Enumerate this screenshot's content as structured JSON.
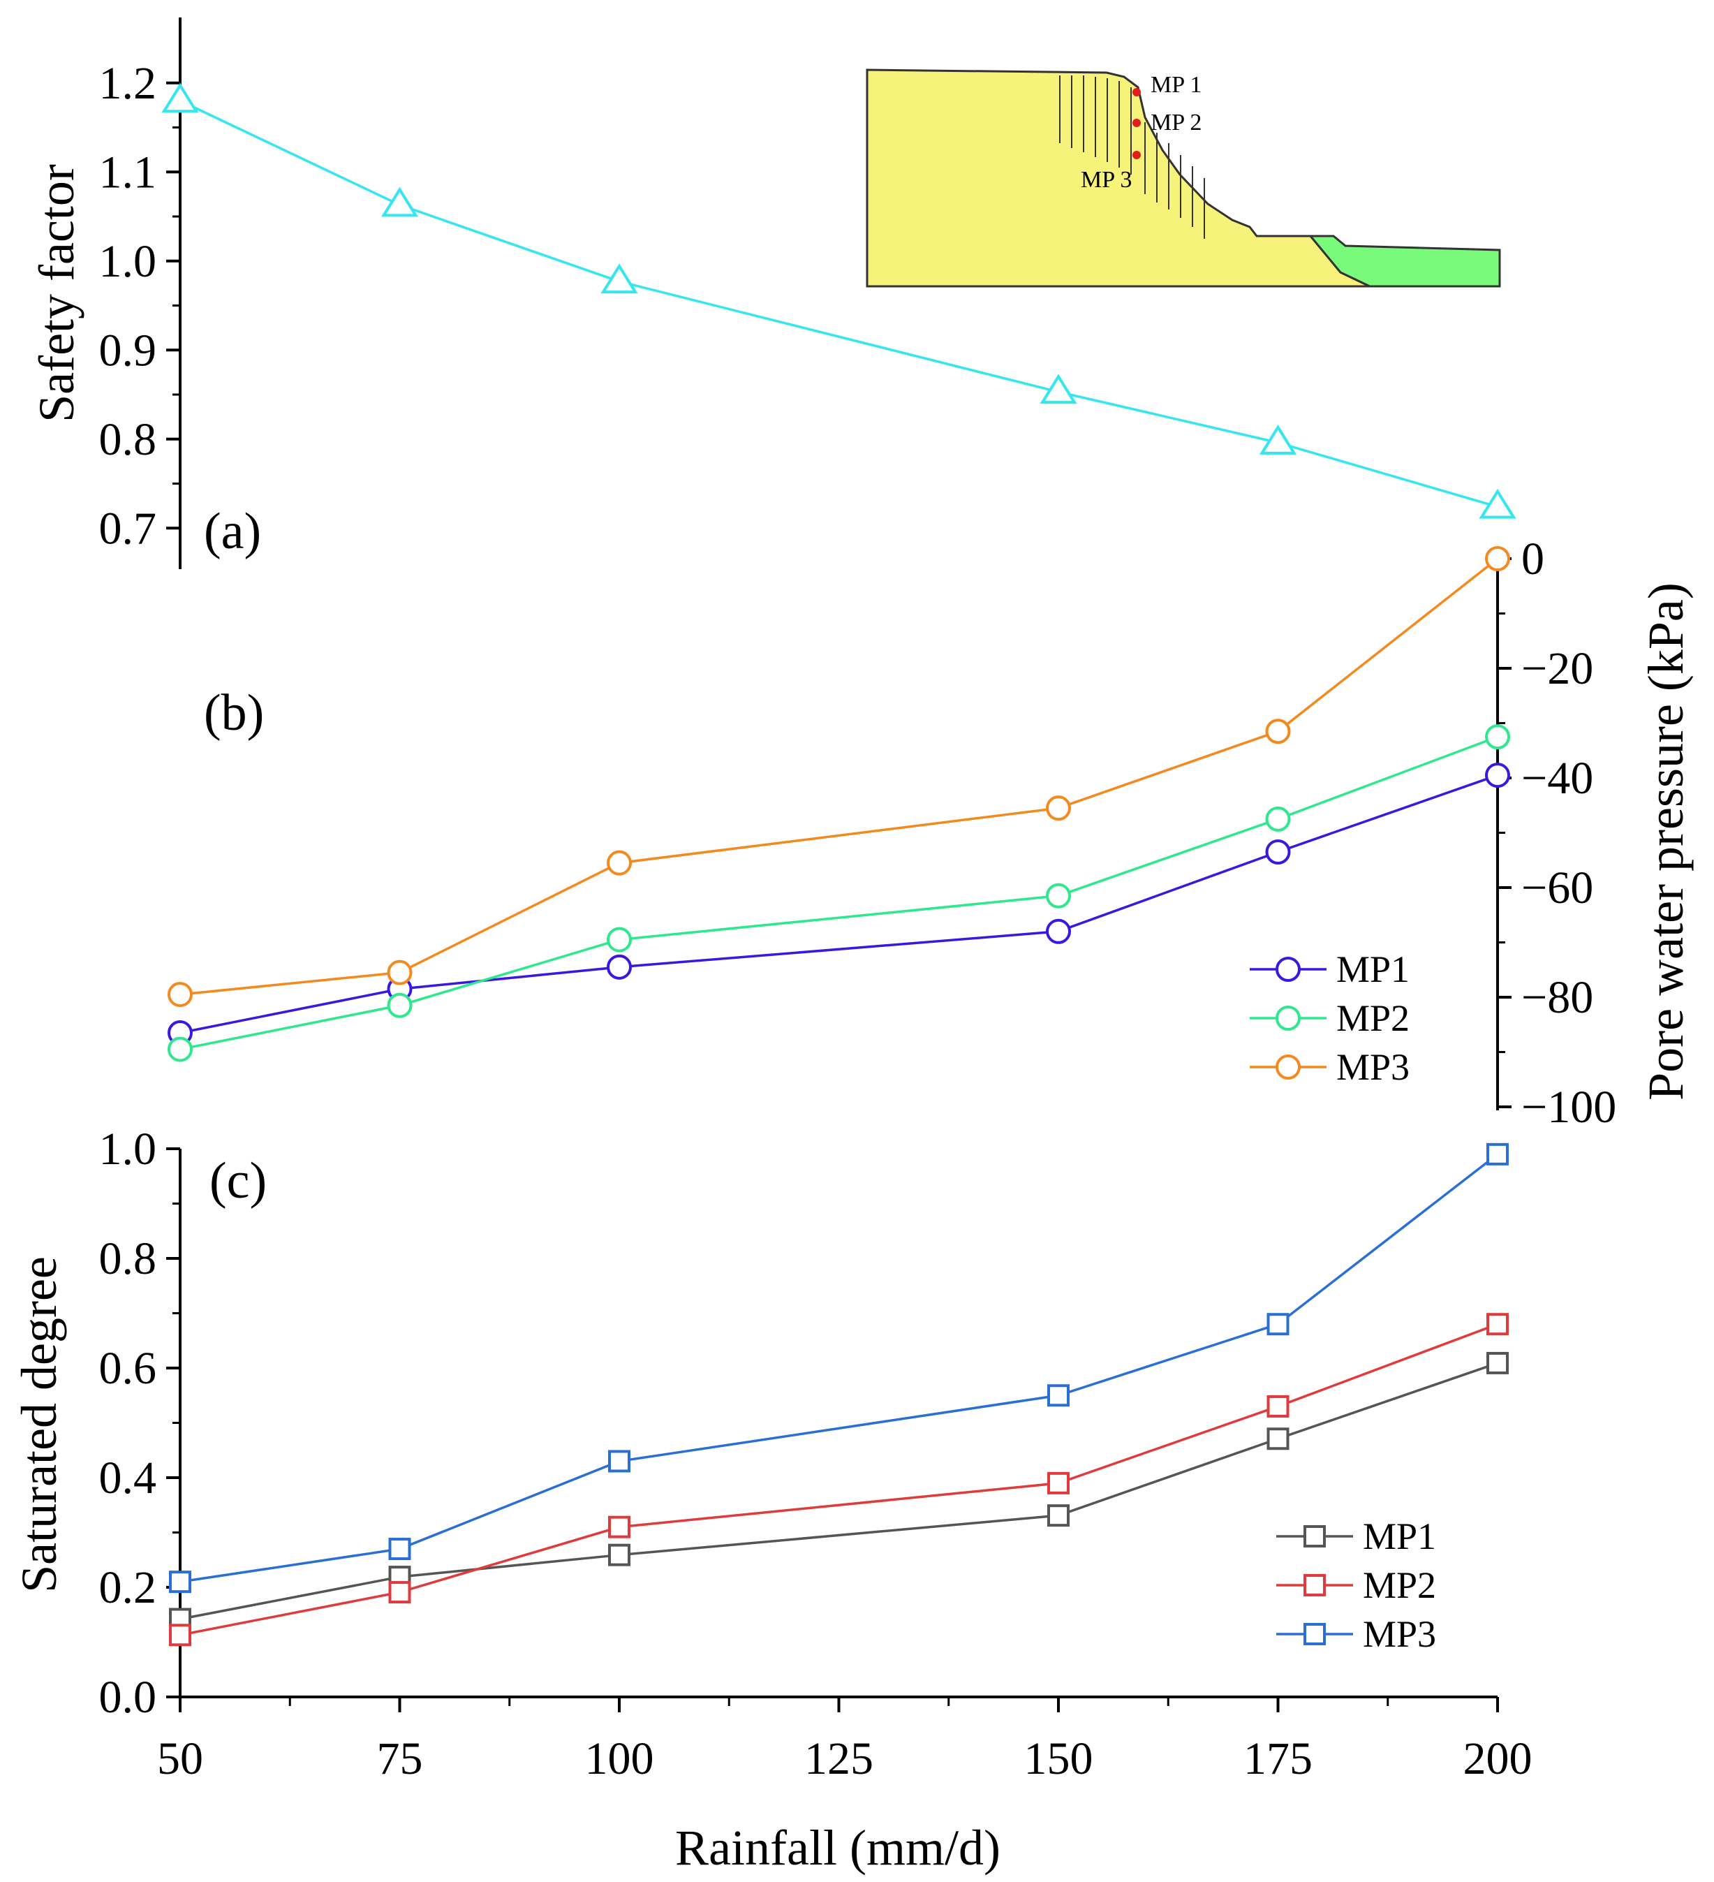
{
  "figure": {
    "xlabel": "Rainfall (mm/d)",
    "x_ticks": [
      50,
      75,
      100,
      125,
      150,
      175,
      200
    ],
    "x_tick_labels": [
      "50",
      "75",
      "100",
      "125",
      "150",
      "175",
      "200"
    ],
    "x_range": [
      50,
      200
    ]
  },
  "chart_data": [
    {
      "type": "line",
      "panel_label": "(a)",
      "title": "",
      "xlabel": "",
      "ylabel": "Safety factor",
      "ylim": [
        0.65,
        1.25
      ],
      "y_ticks": [
        0.7,
        0.8,
        0.9,
        1.0,
        1.1,
        1.2
      ],
      "y_tick_labels": [
        "0.7",
        "0.8",
        "0.9",
        "1.0",
        "1.1",
        "1.2"
      ],
      "y_axis_side": "left",
      "x": [
        50,
        75,
        100,
        150,
        175,
        200
      ],
      "series": [
        {
          "name": "Safety factor",
          "color": "#33E6F0",
          "marker": "triangle",
          "values": [
            1.18,
            1.063,
            0.977,
            0.853,
            0.796,
            0.724
          ]
        }
      ],
      "legend": "none",
      "grid": false
    },
    {
      "type": "line",
      "panel_label": "(b)",
      "title": "",
      "xlabel": "",
      "ylabel": "Pore water pressure (kPa)",
      "ylim": [
        -100,
        0
      ],
      "y_ticks": [
        0,
        -20,
        -40,
        -60,
        -80,
        -100
      ],
      "y_tick_labels": [
        "0",
        "−20",
        "−40",
        "−60",
        "−80",
        "−100"
      ],
      "y_axis_side": "right",
      "x": [
        50,
        75,
        100,
        150,
        175,
        200
      ],
      "series": [
        {
          "name": "MP1",
          "color": "#3A18E0",
          "marker": "circle",
          "values": [
            -86.5,
            -78.5,
            -74.5,
            -68,
            -53.5,
            -39.5
          ]
        },
        {
          "name": "MP2",
          "color": "#2EE88E",
          "marker": "circle",
          "values": [
            -89.5,
            -81.5,
            -69.5,
            -61.5,
            -47.5,
            -32.5
          ]
        },
        {
          "name": "MP3",
          "color": "#F48A1E",
          "marker": "circle",
          "values": [
            -79.5,
            -75.5,
            -55.5,
            -45.5,
            -31.5,
            0
          ]
        }
      ],
      "legend": "right",
      "grid": false
    },
    {
      "type": "line",
      "panel_label": "(c)",
      "title": "",
      "xlabel": "Rainfall (mm/d)",
      "ylabel": "Saturated degree",
      "ylim": [
        0,
        1.0
      ],
      "y_ticks": [
        0.0,
        0.2,
        0.4,
        0.6,
        0.8,
        1.0
      ],
      "y_tick_labels": [
        "0.0",
        "0.2",
        "0.4",
        "0.6",
        "0.8",
        "1.0"
      ],
      "y_axis_side": "left",
      "x": [
        50,
        75,
        100,
        150,
        175,
        200
      ],
      "series": [
        {
          "name": "MP1",
          "color": "#555555",
          "marker": "square",
          "values": [
            0.142,
            0.219,
            0.259,
            0.331,
            0.471,
            0.609
          ]
        },
        {
          "name": "MP2",
          "color": "#E03A3C",
          "marker": "square",
          "values": [
            0.113,
            0.191,
            0.31,
            0.39,
            0.53,
            0.68
          ]
        },
        {
          "name": "MP3",
          "color": "#2A6FD6",
          "marker": "square",
          "values": [
            0.21,
            0.27,
            0.43,
            0.55,
            0.68,
            0.99
          ]
        }
      ],
      "legend": "right",
      "grid": false
    }
  ],
  "inset": {
    "labels": [
      "MP 1",
      "MP 2",
      "MP 3"
    ],
    "colors": {
      "upper_soil": "#F7F279",
      "lower_soil": "#7AFA7A",
      "monitor_point": "#E11D1D",
      "outline": "#333333"
    }
  }
}
